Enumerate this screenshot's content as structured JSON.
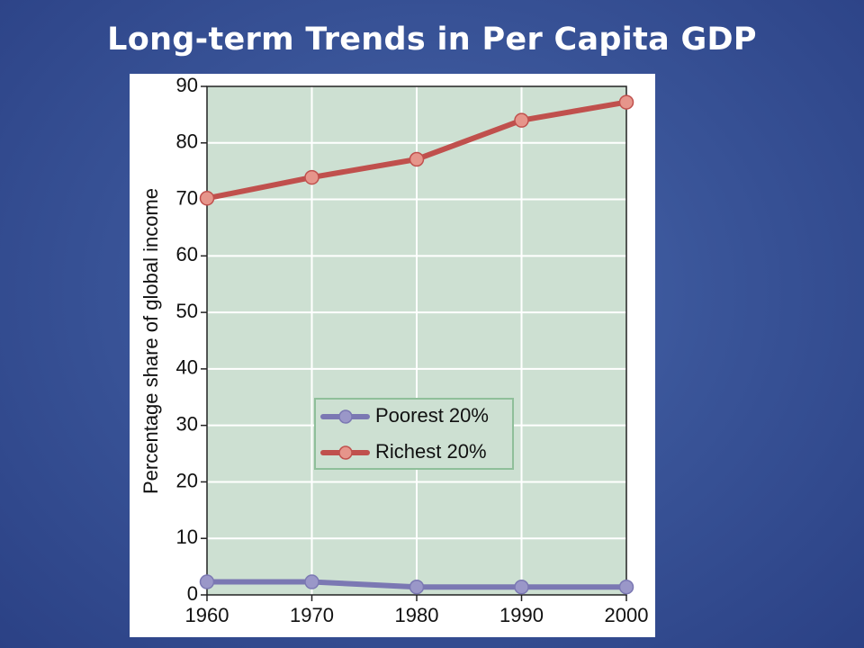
{
  "slide": {
    "title": "Long-term Trends in Per Capita GDP"
  },
  "chart_data": {
    "type": "line",
    "title": "",
    "xlabel": "",
    "ylabel": "Percentage share of global income",
    "x": [
      1960,
      1970,
      1980,
      1990,
      2000
    ],
    "xlim": [
      1960,
      2000
    ],
    "ylim": [
      0,
      90
    ],
    "yticks": [
      0,
      10,
      20,
      30,
      40,
      50,
      60,
      70,
      80,
      90
    ],
    "grid": true,
    "legend_position": "center",
    "plot_background": "#cde0d2",
    "series": [
      {
        "name": "Poorest 20%",
        "values": [
          2.3,
          2.3,
          1.4,
          1.4,
          1.4
        ],
        "color": "#7b78b3",
        "marker_color": "#9a97c8"
      },
      {
        "name": "Richest 20%",
        "values": [
          70.2,
          73.9,
          77.1,
          84.0,
          87.2
        ],
        "color": "#c0504d",
        "marker_color": "#e6958b"
      }
    ]
  }
}
